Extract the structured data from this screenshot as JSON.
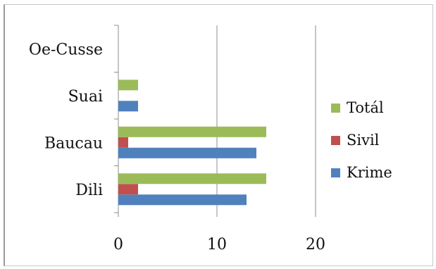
{
  "chart_data": {
    "type": "bar",
    "orientation": "horizontal",
    "title": "",
    "xlabel": "",
    "ylabel": "",
    "categories": [
      "Dili",
      "Baucau",
      "Suai",
      "Oe-Cusse"
    ],
    "series": [
      {
        "name": "Krime",
        "color": "#4f81bd",
        "values": [
          13,
          14,
          2,
          0
        ]
      },
      {
        "name": "Sivil",
        "color": "#c0504d",
        "values": [
          2,
          1,
          0,
          0
        ]
      },
      {
        "name": "Totál",
        "color": "#9bbb59",
        "values": [
          15,
          15,
          2,
          0
        ]
      }
    ],
    "xlim": [
      0,
      20
    ],
    "xticks": [
      "0",
      "10",
      "20"
    ],
    "grid": "vertical",
    "legend_position": "right",
    "legend_order": [
      "Totál",
      "Sivil",
      "Krime"
    ]
  }
}
